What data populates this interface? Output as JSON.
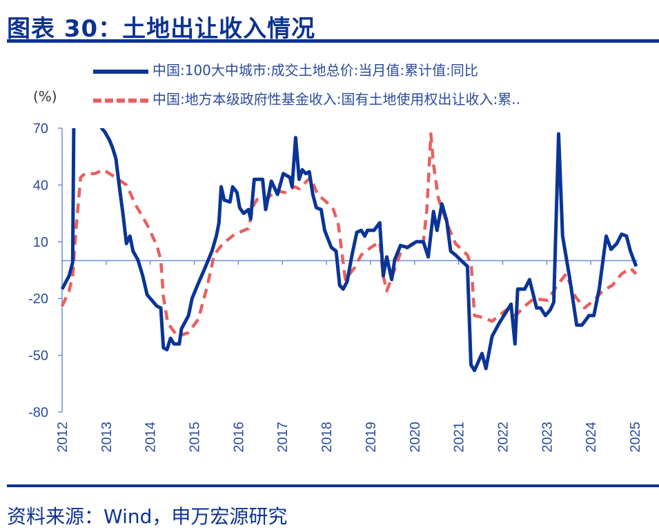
{
  "title": "图表 30：土地出让收入情况",
  "source": "资料来源：Wind，申万宏源研究",
  "chart_data": {
    "type": "line",
    "title": "",
    "ylabel": "(%)",
    "ylim": [
      -80,
      70
    ],
    "yticks": [
      70,
      40,
      10,
      -20,
      -50,
      -80
    ],
    "xlim": [
      2012,
      2025
    ],
    "xticks": [
      "2012",
      "2013",
      "2014",
      "2015",
      "2016",
      "2017",
      "2018",
      "2019",
      "2020",
      "2021",
      "2022",
      "2023",
      "2024",
      "2025"
    ],
    "baseline": 0,
    "legend_position": "top",
    "series": [
      {
        "name": "中国:100大中城市:成交土地总价:当月值:累计值:同比",
        "color": "#0a3496",
        "style": "solid",
        "points": [
          [
            2012.0,
            -15
          ],
          [
            2012.16,
            -8
          ],
          [
            2012.24,
            -1
          ],
          [
            2012.27,
            85
          ],
          [
            2012.5,
            85
          ],
          [
            2012.8,
            85
          ],
          [
            2012.83,
            72
          ],
          [
            2012.97,
            68
          ],
          [
            2013.07,
            64
          ],
          [
            2013.14,
            60
          ],
          [
            2013.22,
            54
          ],
          [
            2013.3,
            39
          ],
          [
            2013.38,
            25
          ],
          [
            2013.46,
            9
          ],
          [
            2013.54,
            13
          ],
          [
            2013.61,
            5
          ],
          [
            2013.72,
            0.5
          ],
          [
            2013.83,
            -8
          ],
          [
            2013.93,
            -18
          ],
          [
            2014.04,
            -21
          ],
          [
            2014.15,
            -24
          ],
          [
            2014.24,
            -25
          ],
          [
            2014.3,
            -46
          ],
          [
            2014.38,
            -47
          ],
          [
            2014.46,
            -41
          ],
          [
            2014.54,
            -44
          ],
          [
            2014.66,
            -44
          ],
          [
            2014.71,
            -36
          ],
          [
            2014.87,
            -29
          ],
          [
            2014.95,
            -20
          ],
          [
            2015.09,
            -12
          ],
          [
            2015.24,
            -4
          ],
          [
            2015.4,
            5
          ],
          [
            2015.5,
            13
          ],
          [
            2015.56,
            20
          ],
          [
            2015.61,
            39
          ],
          [
            2015.68,
            32
          ],
          [
            2015.81,
            31
          ],
          [
            2015.87,
            39
          ],
          [
            2015.97,
            36
          ],
          [
            2016.03,
            28
          ],
          [
            2016.12,
            25
          ],
          [
            2016.23,
            27
          ],
          [
            2016.28,
            22
          ],
          [
            2016.36,
            43
          ],
          [
            2016.55,
            43
          ],
          [
            2016.62,
            27
          ],
          [
            2016.75,
            42
          ],
          [
            2016.89,
            35
          ],
          [
            2017.02,
            46
          ],
          [
            2017.17,
            44
          ],
          [
            2017.22,
            39
          ],
          [
            2017.3,
            65
          ],
          [
            2017.38,
            43
          ],
          [
            2017.45,
            48
          ],
          [
            2017.53,
            46
          ],
          [
            2017.61,
            47
          ],
          [
            2017.69,
            35
          ],
          [
            2017.77,
            28
          ],
          [
            2017.88,
            27
          ],
          [
            2017.96,
            16
          ],
          [
            2018.11,
            7
          ],
          [
            2018.22,
            5
          ],
          [
            2018.3,
            -13
          ],
          [
            2018.38,
            -15
          ],
          [
            2018.47,
            -11
          ],
          [
            2018.58,
            3
          ],
          [
            2018.69,
            15
          ],
          [
            2018.79,
            16
          ],
          [
            2018.87,
            13
          ],
          [
            2018.93,
            16
          ],
          [
            2019.08,
            16
          ],
          [
            2019.21,
            20
          ],
          [
            2019.29,
            -8
          ],
          [
            2019.37,
            2
          ],
          [
            2019.48,
            -10
          ],
          [
            2019.55,
            0.5
          ],
          [
            2019.68,
            8
          ],
          [
            2019.84,
            7
          ],
          [
            2020.04,
            10
          ],
          [
            2020.2,
            10
          ],
          [
            2020.31,
            2
          ],
          [
            2020.43,
            26
          ],
          [
            2020.51,
            16
          ],
          [
            2020.62,
            30
          ],
          [
            2020.73,
            21
          ],
          [
            2020.82,
            5
          ],
          [
            2020.93,
            3
          ],
          [
            2021.04,
            0.5
          ],
          [
            2021.2,
            -3
          ],
          [
            2021.28,
            -55
          ],
          [
            2021.36,
            -58
          ],
          [
            2021.53,
            -49
          ],
          [
            2021.62,
            -57
          ],
          [
            2021.76,
            -40
          ],
          [
            2021.92,
            -33
          ],
          [
            2022.19,
            -23
          ],
          [
            2022.28,
            -44
          ],
          [
            2022.34,
            -15
          ],
          [
            2022.5,
            -15
          ],
          [
            2022.61,
            -10
          ],
          [
            2022.77,
            -25
          ],
          [
            2022.86,
            -25
          ],
          [
            2022.97,
            -29
          ],
          [
            2023.08,
            -26
          ],
          [
            2023.16,
            -22
          ],
          [
            2023.27,
            67
          ],
          [
            2023.36,
            13
          ],
          [
            2023.52,
            -9
          ],
          [
            2023.68,
            -34
          ],
          [
            2023.8,
            -34
          ],
          [
            2023.96,
            -29
          ],
          [
            2024.07,
            -29
          ],
          [
            2024.19,
            -15
          ],
          [
            2024.35,
            13
          ],
          [
            2024.46,
            6
          ],
          [
            2024.59,
            9
          ],
          [
            2024.7,
            14
          ],
          [
            2024.81,
            13
          ],
          [
            2024.9,
            5
          ],
          [
            2025.03,
            -3
          ]
        ]
      },
      {
        "name": "中国:地方本级政府性基金收入:国有土地使用权出让收入:累..",
        "color": "#e8605e",
        "style": "dashed",
        "points": [
          [
            2012.0,
            -24
          ],
          [
            2012.16,
            -16
          ],
          [
            2012.24,
            -8
          ],
          [
            2012.31,
            15
          ],
          [
            2012.42,
            44
          ],
          [
            2012.52,
            46
          ],
          [
            2012.74,
            46
          ],
          [
            2012.94,
            48
          ],
          [
            2013.21,
            44
          ],
          [
            2013.46,
            40
          ],
          [
            2013.68,
            29
          ],
          [
            2013.93,
            19
          ],
          [
            2014.15,
            8
          ],
          [
            2014.24,
            0.5
          ],
          [
            2014.3,
            -19
          ],
          [
            2014.4,
            -33
          ],
          [
            2014.62,
            -40
          ],
          [
            2014.87,
            -38
          ],
          [
            2015.09,
            -31
          ],
          [
            2015.29,
            -14
          ],
          [
            2015.45,
            3
          ],
          [
            2015.65,
            9
          ],
          [
            2015.92,
            14
          ],
          [
            2016.23,
            17
          ],
          [
            2016.34,
            29
          ],
          [
            2016.44,
            33
          ],
          [
            2016.66,
            33
          ],
          [
            2016.86,
            37
          ],
          [
            2017.06,
            36
          ],
          [
            2017.28,
            39
          ],
          [
            2017.38,
            38
          ],
          [
            2017.64,
            44
          ],
          [
            2017.8,
            35
          ],
          [
            2018.0,
            31
          ],
          [
            2018.16,
            27
          ],
          [
            2018.27,
            19
          ],
          [
            2018.43,
            -10
          ],
          [
            2018.63,
            -4
          ],
          [
            2018.79,
            3
          ],
          [
            2019.01,
            7
          ],
          [
            2019.21,
            10
          ],
          [
            2019.29,
            -8
          ],
          [
            2019.37,
            -16
          ],
          [
            2019.48,
            -9
          ],
          [
            2019.68,
            4
          ],
          [
            2019.95,
            9
          ],
          [
            2020.2,
            10
          ],
          [
            2020.28,
            27
          ],
          [
            2020.37,
            67
          ],
          [
            2020.43,
            51
          ],
          [
            2020.54,
            33
          ],
          [
            2020.73,
            20
          ],
          [
            2020.93,
            9
          ],
          [
            2021.2,
            3
          ],
          [
            2021.29,
            -3
          ],
          [
            2021.36,
            -29
          ],
          [
            2021.56,
            -30
          ],
          [
            2021.76,
            -32
          ],
          [
            2022.08,
            -26
          ],
          [
            2022.3,
            -29
          ],
          [
            2022.5,
            -24
          ],
          [
            2022.71,
            -20
          ],
          [
            2023.02,
            -21
          ],
          [
            2023.24,
            -13
          ],
          [
            2023.44,
            -7
          ],
          [
            2023.65,
            -19
          ],
          [
            2023.86,
            -25
          ],
          [
            2024.07,
            -21
          ],
          [
            2024.27,
            -16
          ],
          [
            2024.49,
            -13
          ],
          [
            2024.7,
            -7
          ],
          [
            2024.9,
            -4
          ],
          [
            2025.03,
            -7
          ]
        ]
      }
    ]
  }
}
